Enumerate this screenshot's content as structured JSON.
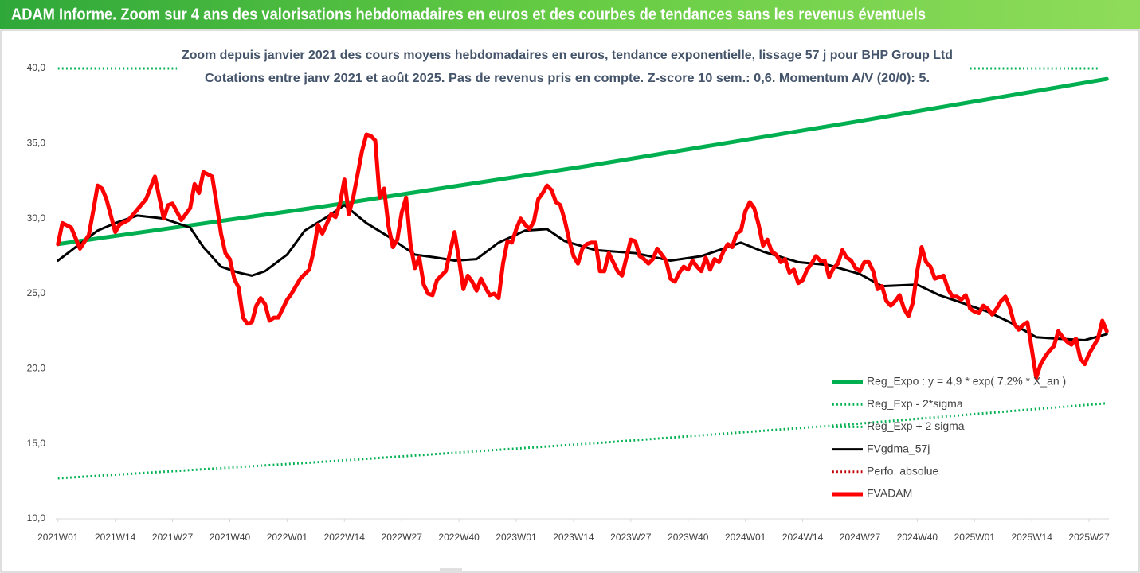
{
  "chart_data": {
    "type": "line",
    "title": "ADAM Informe. Zoom sur 4 ans des valorisations hebdomadaires en euros et des courbes de tendances sans les revenus éventuels",
    "subtitle": [
      "Zoom depuis janvier 2021 des cours moyens hebdomadaires en euros, tendance exponentielle, lissage 57 j pour BHP Group Ltd",
      "Cotations entre janv 2021 et août 2025.  Pas de revenus pris en compte. Z-score 10 sem.: 0,6. Momentum A/V (20/0): 5."
    ],
    "xlim": [
      -0.5,
      238.5
    ],
    "xticks": [
      {
        "value": 0,
        "label": "2021W01"
      },
      {
        "value": 13,
        "label": "2021W14"
      },
      {
        "value": 26,
        "label": "2021W27"
      },
      {
        "value": 39,
        "label": "2021W40"
      },
      {
        "value": 52,
        "label": "2022W01"
      },
      {
        "value": 65,
        "label": "2022W14"
      },
      {
        "value": 78,
        "label": "2022W27"
      },
      {
        "value": 91,
        "label": "2022W40"
      },
      {
        "value": 104,
        "label": "2023W01"
      },
      {
        "value": 117,
        "label": "2023W14"
      },
      {
        "value": 130,
        "label": "2023W27"
      },
      {
        "value": 143,
        "label": "2023W40"
      },
      {
        "value": 156,
        "label": "2024W01"
      },
      {
        "value": 169,
        "label": "2024W14"
      },
      {
        "value": 182,
        "label": "2024W27"
      },
      {
        "value": 195,
        "label": "2024W40"
      },
      {
        "value": 208,
        "label": "2025W01"
      },
      {
        "value": 221,
        "label": "2025W14"
      },
      {
        "value": 234,
        "label": "2025W27"
      }
    ],
    "ylim": [
      10,
      40
    ],
    "yticks": [
      {
        "value": 10,
        "label": "10,0"
      },
      {
        "value": 15,
        "label": "15,0"
      },
      {
        "value": 20,
        "label": "20,0"
      },
      {
        "value": 25,
        "label": "25,0"
      },
      {
        "value": 30,
        "label": "30,0"
      },
      {
        "value": 35,
        "label": "35,0"
      },
      {
        "value": 40,
        "label": "40,0"
      }
    ],
    "grid": false,
    "legend": "bottom-right",
    "series": [
      {
        "name": "Reg_Expo : y = 4,9 * exp( 7,2% *   X_an )",
        "color": "#00b050",
        "style": "solid",
        "width": 5,
        "x": [
          0,
          60,
          120,
          180,
          238
        ],
        "values": [
          28.3,
          30.8,
          33.5,
          36.4,
          39.3
        ]
      },
      {
        "name": "Reg_Exp - 2*sigma",
        "color": "#00b050",
        "style": "dotted",
        "width": 3,
        "x": [
          0,
          60,
          120,
          180,
          238
        ],
        "values": [
          12.7,
          13.8,
          15.0,
          16.3,
          17.7
        ]
      },
      {
        "name": "Reg_Exp + 2 sigma",
        "color": "#00b050",
        "style": "dotted",
        "width": 3,
        "x": [
          0,
          27,
          117,
          207,
          236
        ],
        "values": [
          40,
          40,
          null,
          40,
          40
        ]
      },
      {
        "name": "FVgdma_57j",
        "color": "#000000",
        "style": "solid",
        "width": 3,
        "x": [
          0,
          4,
          9,
          13,
          18,
          24,
          30,
          33,
          37,
          41,
          44,
          47,
          52,
          56,
          61,
          65,
          70,
          75,
          81,
          86,
          90,
          95,
          100,
          106,
          111,
          115,
          122,
          131,
          139,
          146,
          151,
          155,
          160,
          168,
          175,
          182,
          187,
          195,
          200,
          205,
          211,
          216,
          222,
          227,
          233,
          238
        ],
        "values": [
          27.2,
          28.1,
          29.2,
          29.7,
          30.2,
          30.0,
          29.4,
          28.1,
          26.8,
          26.4,
          26.2,
          26.5,
          27.6,
          29.2,
          30.1,
          30.9,
          29.7,
          28.8,
          27.6,
          27.4,
          27.2,
          27.3,
          28.4,
          29.2,
          29.3,
          28.5,
          27.9,
          27.7,
          27.2,
          27.5,
          28.0,
          28.4,
          27.8,
          27.1,
          26.9,
          26.3,
          25.5,
          25.6,
          24.9,
          24.4,
          23.8,
          23.1,
          22.1,
          22.0,
          21.9,
          22.3
        ]
      },
      {
        "name": "Perfo. absolue",
        "color": "#c00000",
        "style": "dotted",
        "width": 3
      },
      {
        "name": "FVADAM",
        "color": "#ff0000",
        "style": "solid",
        "width": 5,
        "x": [
          0,
          1,
          3,
          5,
          7,
          8,
          9,
          10,
          11,
          13,
          14,
          16,
          18,
          20,
          22,
          23,
          24,
          25,
          26,
          28,
          30,
          31,
          32,
          33,
          35,
          36,
          37,
          38,
          39,
          40,
          41,
          42,
          43,
          44,
          45,
          46,
          47,
          48,
          49,
          50,
          52,
          53,
          55,
          57,
          58,
          59,
          60,
          62,
          63,
          64,
          65,
          66,
          67,
          69,
          70,
          71,
          72,
          73,
          74,
          75,
          76,
          77,
          78,
          79,
          80,
          81,
          82,
          83,
          84,
          85,
          86,
          88,
          90,
          91,
          92,
          93,
          94,
          95,
          96,
          97,
          98,
          99,
          100,
          101,
          102,
          103,
          104,
          105,
          106,
          107,
          108,
          109,
          110,
          111,
          112,
          113,
          114,
          115,
          116,
          117,
          118,
          119,
          120,
          121,
          122,
          123,
          124,
          125,
          126,
          127,
          128,
          129,
          130,
          131,
          132,
          133,
          134,
          135,
          136,
          137,
          138,
          139,
          140,
          141,
          142,
          143,
          144,
          145,
          146,
          147,
          148,
          149,
          150,
          151,
          152,
          153,
          154,
          155,
          156,
          157,
          158,
          159,
          160,
          161,
          162,
          163,
          164,
          165,
          166,
          167,
          168,
          169,
          170,
          171,
          172,
          173,
          174,
          175,
          176,
          177,
          178,
          179,
          180,
          181,
          182,
          183,
          184,
          185,
          186,
          187,
          188,
          189,
          190,
          191,
          192,
          193,
          194,
          195,
          196,
          197,
          198,
          199,
          200,
          201,
          202,
          203,
          204,
          205,
          206,
          207,
          208,
          209,
          210,
          211,
          212,
          213,
          214,
          215,
          216,
          217,
          218,
          219,
          220,
          221,
          222,
          223,
          224,
          225,
          226,
          227,
          228,
          229,
          230,
          231,
          232,
          233,
          234,
          235,
          236,
          237,
          238
        ],
        "values": [
          28.3,
          29.7,
          29.4,
          28.0,
          28.9,
          30.5,
          32.2,
          32.0,
          31.3,
          29.1,
          29.6,
          29.9,
          30.6,
          31.3,
          32.8,
          31.4,
          30.0,
          30.9,
          31.0,
          29.9,
          30.7,
          32.3,
          31.7,
          33.1,
          32.8,
          31.0,
          29.0,
          27.7,
          27.3,
          26.0,
          25.4,
          23.4,
          23.0,
          23.1,
          24.2,
          24.7,
          24.3,
          23.2,
          23.4,
          23.4,
          24.6,
          25.0,
          26.0,
          26.6,
          27.8,
          29.6,
          29.0,
          30.3,
          30.1,
          31.0,
          32.6,
          30.3,
          31.4,
          34.5,
          35.6,
          35.5,
          35.2,
          31.4,
          32.0,
          29.5,
          28.1,
          28.6,
          30.4,
          31.4,
          28.3,
          26.7,
          27.4,
          25.6,
          25.0,
          24.9,
          25.9,
          26.5,
          29.1,
          27.3,
          25.3,
          26.2,
          25.8,
          25.2,
          26.0,
          25.4,
          24.9,
          25.0,
          24.7,
          27.0,
          28.5,
          28.4,
          29.3,
          30.0,
          29.6,
          29.3,
          29.8,
          31.3,
          31.7,
          32.2,
          31.9,
          31.1,
          30.9,
          29.9,
          28.6,
          27.5,
          27.0,
          28.0,
          28.3,
          28.4,
          28.4,
          26.5,
          26.5,
          27.7,
          27.1,
          26.5,
          26.2,
          27.4,
          28.6,
          28.5,
          27.5,
          27.3,
          27.0,
          27.3,
          28.0,
          27.6,
          27.2,
          26.0,
          25.8,
          26.4,
          26.8,
          26.6,
          27.2,
          26.8,
          26.5,
          27.4,
          26.6,
          27.3,
          27.1,
          27.8,
          28.3,
          28.1,
          29.0,
          29.2,
          30.5,
          31.1,
          30.7,
          29.6,
          28.2,
          28.6,
          27.8,
          27.6,
          27.1,
          27.3,
          26.4,
          26.6,
          25.7,
          25.9,
          26.6,
          27.0,
          27.5,
          27.2,
          27.2,
          26.1,
          26.7,
          27.0,
          27.9,
          27.4,
          27.2,
          26.7,
          26.5,
          27.1,
          27.1,
          26.5,
          25.3,
          25.5,
          24.5,
          24.2,
          24.5,
          24.9,
          24.0,
          23.5,
          24.4,
          26.5,
          28.1,
          27.1,
          26.8,
          26.0,
          26.1,
          26.2,
          25.3,
          24.8,
          24.8,
          24.6,
          24.9,
          24.0,
          23.8,
          23.7,
          24.2,
          24.0,
          23.6,
          24.0,
          24.5,
          24.8,
          24.1,
          23.0,
          22.6,
          22.9,
          23.1,
          21.3,
          19.4,
          20.3,
          20.8,
          21.2,
          21.5,
          22.5,
          22.1,
          21.8,
          21.6,
          22.0,
          20.7,
          20.3,
          21.0,
          21.5,
          22.0,
          23.2,
          22.5
        ]
      }
    ]
  }
}
